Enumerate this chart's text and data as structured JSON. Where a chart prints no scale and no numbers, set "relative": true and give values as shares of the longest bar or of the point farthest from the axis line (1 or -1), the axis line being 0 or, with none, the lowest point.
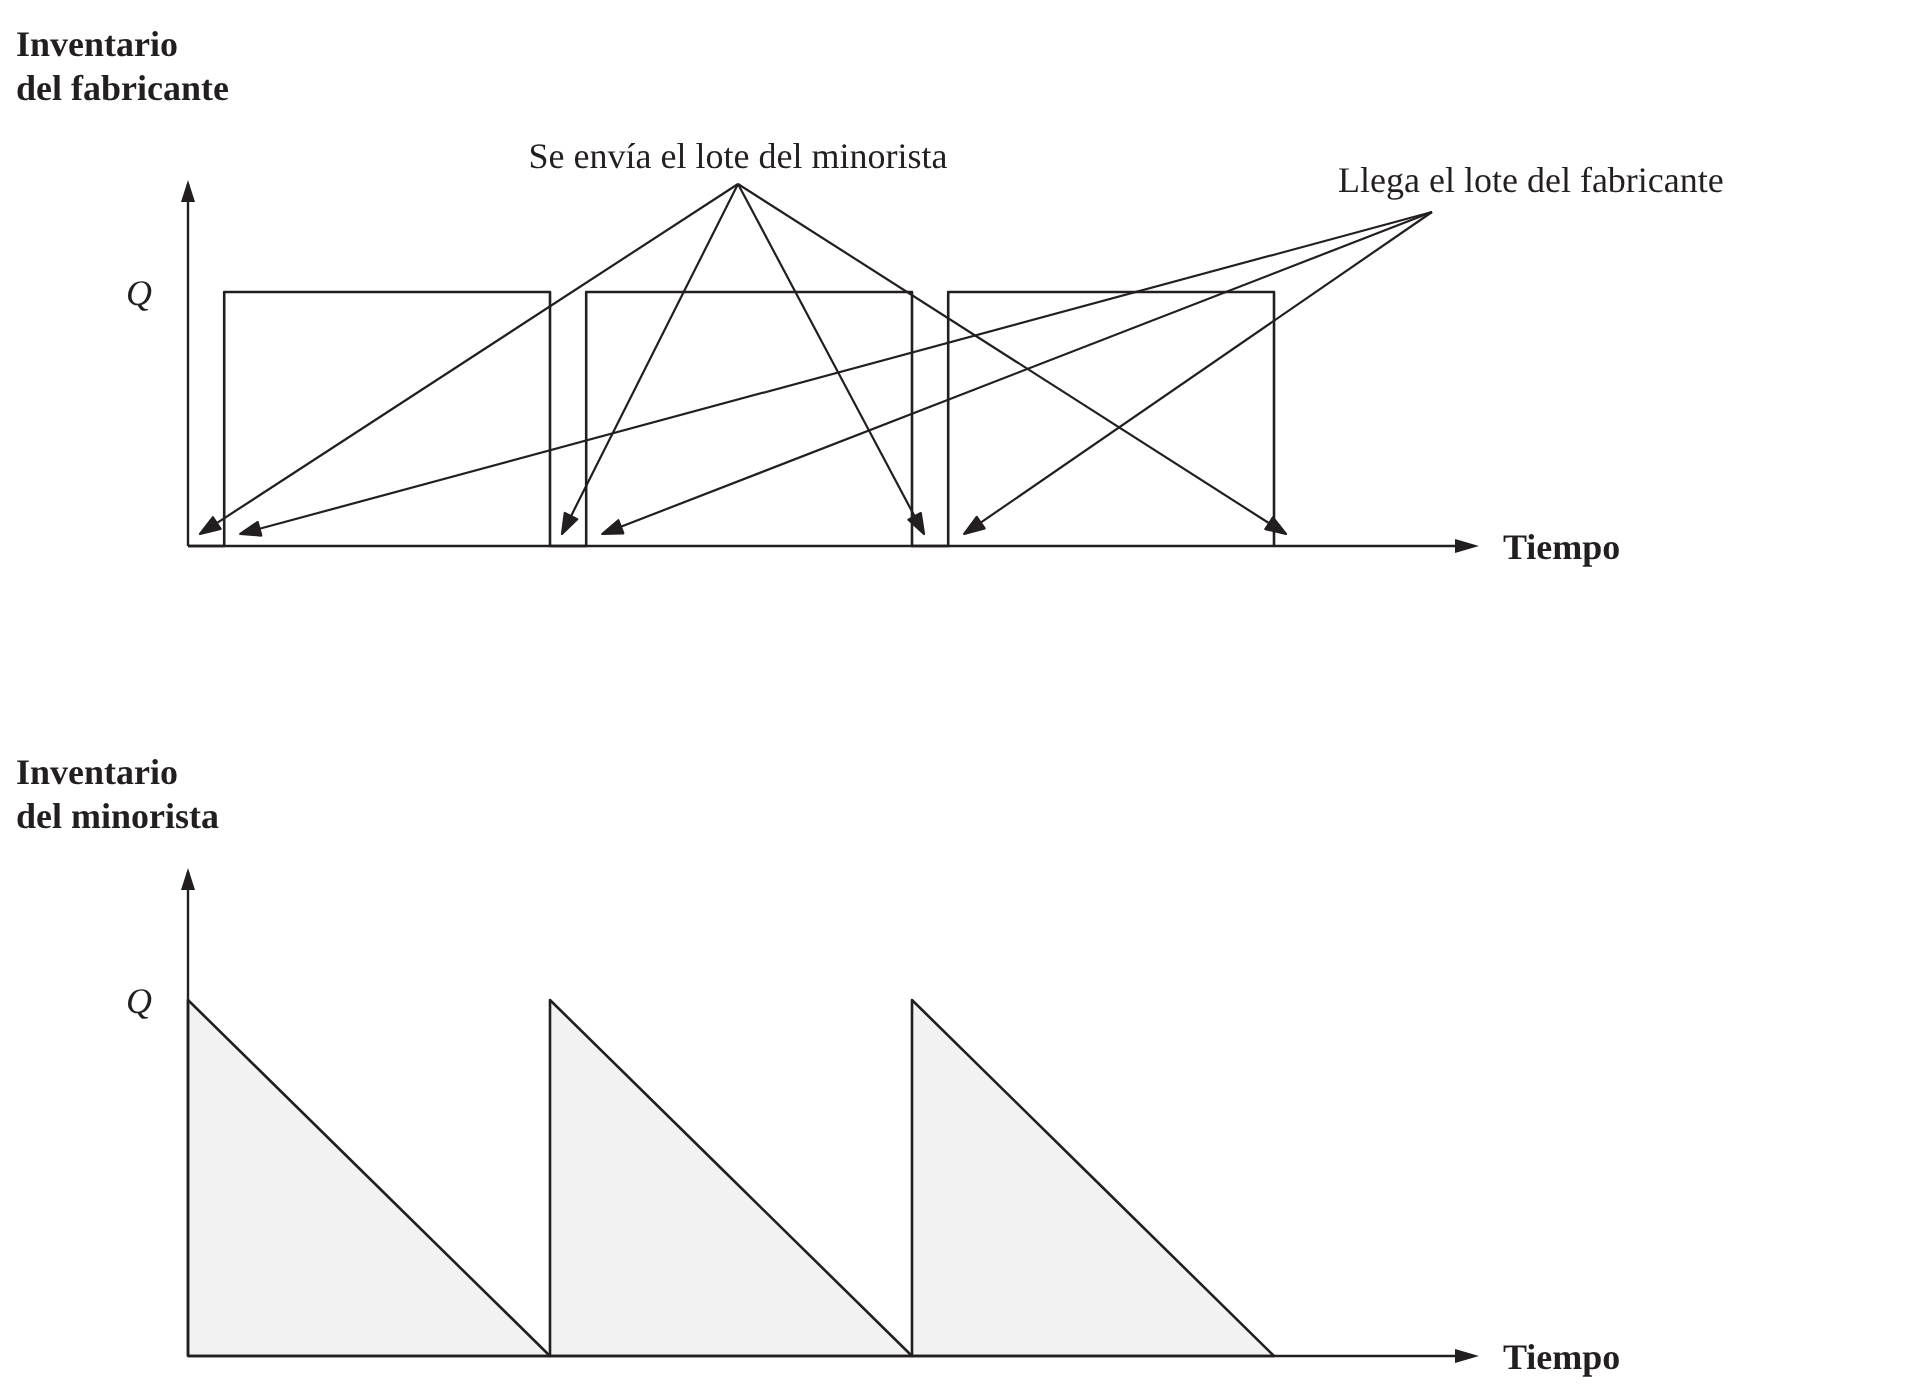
{
  "chart_data": [
    {
      "type": "step",
      "relative": true,
      "ylabel": "Inventario\ndel fabricante",
      "xlabel": "Tiempo",
      "annotations": [
        "Q",
        "Se envía el lote del minorista",
        "Llega el lote del fabricante"
      ],
      "categories": [
        null,
        null,
        null,
        null,
        null,
        null,
        null,
        null,
        null,
        null,
        null,
        null,
        null,
        null,
        null,
        null,
        null,
        null,
        null,
        null,
        null,
        null,
        null,
        null,
        null,
        null,
        null,
        null,
        null,
        null,
        null,
        null,
        null,
        null,
        null,
        null
      ],
      "series": [
        {
          "color": "#231f20",
          "values": [
            0,
            1,
            1,
            1,
            1,
            1,
            1,
            1,
            1,
            1,
            0,
            1,
            1,
            1,
            1,
            1,
            1,
            1,
            1,
            1,
            0,
            1,
            1,
            1,
            1,
            1,
            1,
            1,
            1,
            1,
            0,
            null,
            null,
            null,
            null,
            null
          ]
        }
      ]
    },
    {
      "type": "area",
      "relative": true,
      "ylabel": "Inventario\ndel minorista",
      "xlabel": "Tiempo",
      "annotations": [
        "Q"
      ],
      "categories": [
        null,
        null,
        null,
        null,
        null,
        null,
        null,
        null
      ],
      "series": [
        {
          "color": "#231f20",
          "values": [
            1,
            0.5,
            0,
            null,
            null,
            null,
            null,
            null
          ]
        },
        {
          "color": "#231f20",
          "values": [
            null,
            null,
            1,
            0.5,
            0,
            null,
            null,
            null
          ]
        },
        {
          "color": "#231f20",
          "values": [
            null,
            null,
            null,
            null,
            1,
            0.5,
            0,
            null
          ]
        }
      ]
    }
  ]
}
